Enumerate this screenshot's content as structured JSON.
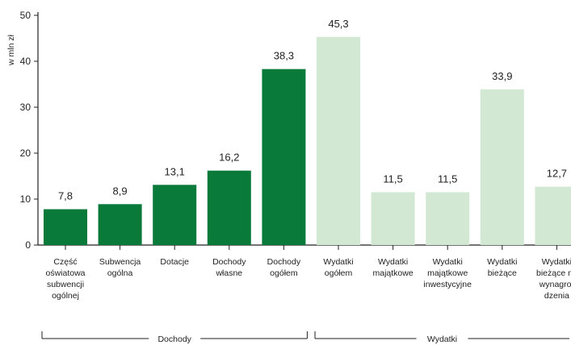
{
  "chart_data": {
    "type": "bar",
    "ylabel": "w mln zł",
    "ylim": [
      0,
      50
    ],
    "yticks": [
      0,
      10,
      20,
      30,
      40,
      50
    ],
    "grid": false,
    "colors": {
      "dochody": "#0a7a3a",
      "wydatki": "#d3e8d3"
    },
    "categories": [
      [
        "Część",
        "oświatowa",
        "subwencji",
        "ogólnej"
      ],
      [
        "Subwencja",
        "ogólna"
      ],
      [
        "Dotacje"
      ],
      [
        "Dochody",
        "własne"
      ],
      [
        "Dochody",
        "ogółem"
      ],
      [
        "Wydatki",
        "ogółem"
      ],
      [
        "Wydatki",
        "majątkowe"
      ],
      [
        "Wydatki",
        "majątkowe",
        "inwestycyjne"
      ],
      [
        "Wydatki",
        "bieżące"
      ],
      [
        "Wydatki",
        "bieżące na",
        "wynagro-",
        "dzenia"
      ]
    ],
    "values": [
      7.8,
      8.9,
      13.1,
      16.2,
      38.3,
      45.3,
      11.5,
      11.5,
      33.9,
      12.7
    ],
    "value_labels": [
      "7,8",
      "8,9",
      "13,1",
      "16,2",
      "38,3",
      "45,3",
      "11,5",
      "11,5",
      "33,9",
      "12,7"
    ],
    "series_group": [
      "dochody",
      "dochody",
      "dochody",
      "dochody",
      "dochody",
      "wydatki",
      "wydatki",
      "wydatki",
      "wydatki",
      "wydatki"
    ],
    "groups": [
      {
        "name": "Dochody",
        "from": 0,
        "to": 4
      },
      {
        "name": "Wydatki",
        "from": 5,
        "to": 9
      }
    ]
  }
}
